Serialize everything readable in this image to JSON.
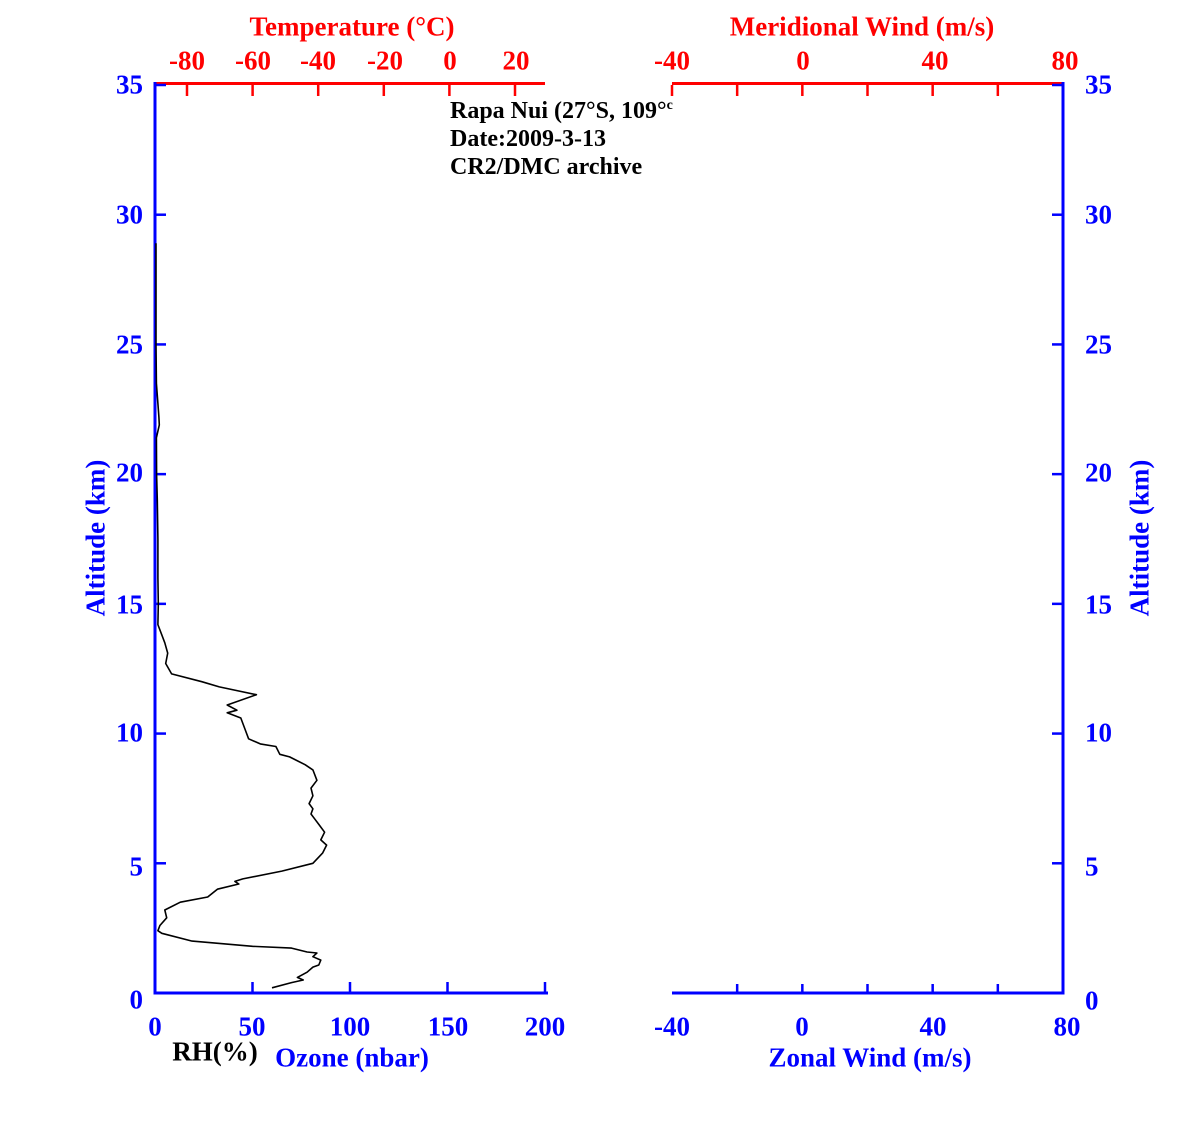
{
  "colors": {
    "axis_red": "#ff0000",
    "axis_blue": "#0000ff",
    "curve_black": "#000000"
  },
  "station_annotation": {
    "line1": "Rapa Nui (27°S, 109°",
    "line1_superscript": "c",
    "line2": "Date:2009-3-13",
    "line3": "CR2/DMC archive"
  },
  "axes": {
    "temperature": {
      "title": "Temperature (°C)",
      "tick_labels": [
        "-80",
        "-60",
        "-40",
        "-20",
        "0",
        "20"
      ]
    },
    "meridional_wind": {
      "title": "Meridional Wind (m/s)",
      "tick_labels": [
        "-40",
        "0",
        "40",
        "80"
      ]
    },
    "ozone": {
      "title": "Ozone (nbar)",
      "secondary_title": "RH(%)",
      "tick_labels": [
        "0",
        "50",
        "100",
        "150",
        "200"
      ]
    },
    "zonal_wind": {
      "title": "Zonal Wind (m/s)",
      "tick_labels": [
        "-40",
        "0",
        "40",
        "80"
      ]
    },
    "altitude_left": {
      "title": "Altitude (km)",
      "tick_labels": [
        "35",
        "30",
        "25",
        "20",
        "15",
        "10",
        "5",
        "0"
      ]
    },
    "altitude_right": {
      "title": "Altitude (km)",
      "tick_labels": [
        "35",
        "30",
        "25",
        "20",
        "15",
        "10",
        "5",
        "0"
      ]
    }
  },
  "chart_data": [
    {
      "type": "line",
      "panel": "left",
      "title": "",
      "x_axis_top": {
        "label": "Temperature (°C)",
        "ticks": [
          -80,
          -60,
          -40,
          -20,
          0,
          20
        ]
      },
      "x_axis_bottom": {
        "label": "Ozone (nbar)",
        "secondary_label": "RH(%)",
        "range": [
          0,
          200
        ],
        "ticks": [
          0,
          50,
          100,
          150,
          200
        ]
      },
      "y_axis": {
        "label": "Altitude (km)",
        "range": [
          0,
          35
        ],
        "ticks": [
          0,
          5,
          10,
          15,
          20,
          25,
          30,
          35
        ]
      },
      "annotations": [
        "Rapa Nui (27°S, 109°c",
        "Date:2009-3-13",
        "CR2/DMC archive"
      ],
      "grid": false,
      "series": [
        {
          "name": "RH (%)",
          "color": "#000000",
          "x_units": "percent on 0-200 bottom scale",
          "points": [
            [
              0.5,
              28.9
            ],
            [
              0.5,
              27.0
            ],
            [
              0.5,
              25.0
            ],
            [
              0.7,
              23.5
            ],
            [
              2.0,
              22.2
            ],
            [
              2.2,
              21.9
            ],
            [
              0.7,
              21.4
            ],
            [
              0.8,
              20.0
            ],
            [
              1.2,
              19.0
            ],
            [
              1.5,
              17.5
            ],
            [
              1.5,
              16.0
            ],
            [
              1.7,
              15.0
            ],
            [
              1.5,
              14.2
            ],
            [
              5.0,
              13.5
            ],
            [
              6.5,
              13.1
            ],
            [
              5.5,
              12.7
            ],
            [
              8.5,
              12.3
            ],
            [
              24.0,
              12.0
            ],
            [
              33.0,
              11.8
            ],
            [
              52.0,
              11.5
            ],
            [
              37.0,
              11.1
            ],
            [
              42.0,
              10.9
            ],
            [
              37.0,
              10.8
            ],
            [
              44.0,
              10.6
            ],
            [
              46.0,
              10.2
            ],
            [
              48.0,
              9.8
            ],
            [
              54.0,
              9.6
            ],
            [
              62.0,
              9.5
            ],
            [
              64.0,
              9.2
            ],
            [
              69.0,
              9.1
            ],
            [
              77.0,
              8.8
            ],
            [
              81.0,
              8.6
            ],
            [
              83.0,
              8.2
            ],
            [
              80.0,
              7.9
            ],
            [
              81.0,
              7.6
            ],
            [
              79.0,
              7.3
            ],
            [
              81.0,
              7.1
            ],
            [
              80.0,
              6.9
            ],
            [
              82.0,
              6.7
            ],
            [
              84.0,
              6.5
            ],
            [
              87.0,
              6.2
            ],
            [
              85.0,
              5.9
            ],
            [
              88.0,
              5.7
            ],
            [
              86.0,
              5.4
            ],
            [
              81.0,
              5.0
            ],
            [
              65.0,
              4.7
            ],
            [
              45.0,
              4.4
            ],
            [
              41.0,
              4.3
            ],
            [
              43.0,
              4.2
            ],
            [
              32.0,
              4.0
            ],
            [
              27.0,
              3.7
            ],
            [
              13.0,
              3.5
            ],
            [
              5.0,
              3.2
            ],
            [
              6.0,
              2.9
            ],
            [
              2.5,
              2.6
            ],
            [
              1.5,
              2.4
            ],
            [
              3.5,
              2.3
            ],
            [
              19.0,
              2.0
            ],
            [
              50.0,
              1.8
            ],
            [
              70.0,
              1.73
            ],
            [
              78.0,
              1.58
            ],
            [
              83.0,
              1.54
            ],
            [
              81.0,
              1.4
            ],
            [
              85.0,
              1.27
            ],
            [
              84.0,
              1.08
            ],
            [
              81.0,
              1.0
            ],
            [
              78.0,
              0.8
            ],
            [
              73.0,
              0.6
            ],
            [
              76.0,
              0.5
            ],
            [
              70.0,
              0.4
            ],
            [
              60.0,
              0.2
            ]
          ]
        }
      ]
    },
    {
      "type": "line",
      "panel": "right",
      "title": "",
      "x_axis_top": {
        "label": "Meridional Wind (m/s)",
        "range": [
          -40,
          80
        ],
        "ticks": [
          -40,
          -20,
          0,
          20,
          40,
          60,
          80
        ]
      },
      "x_axis_bottom": {
        "label": "Zonal Wind (m/s)",
        "range": [
          -40,
          80
        ],
        "ticks": [
          -20,
          0,
          20,
          40,
          60,
          80
        ]
      },
      "y_axis": {
        "label": "Altitude (km)",
        "range": [
          0,
          35
        ],
        "ticks": [
          0,
          5,
          10,
          15,
          20,
          25,
          30,
          35
        ]
      },
      "grid": false,
      "series": []
    }
  ]
}
